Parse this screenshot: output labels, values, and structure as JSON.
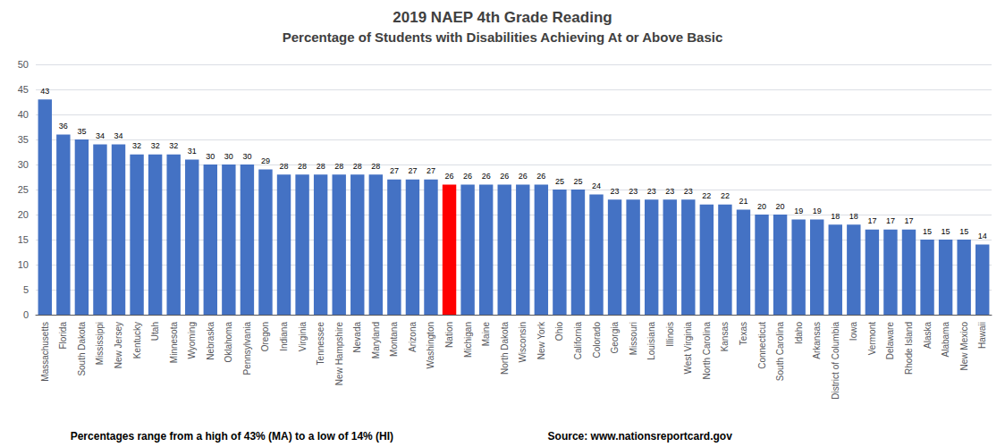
{
  "chart_data": {
    "type": "bar",
    "title": "2019 NAEP 4th Grade Reading",
    "subtitle": "Percentage of Students with Disabilities Achieving At or Above Basic",
    "annotations": [
      "Percentages range from a high of 43% (MA) to a low of 14% (HI)",
      "Source: www.nationsreportcard.gov"
    ],
    "categories": [
      "Massachusetts",
      "Florida",
      "South Dakota",
      "Mississippi",
      "New Jersey",
      "Kentucky",
      "Utah",
      "Minnesota",
      "Wyoming",
      "Nebraska",
      "Oklahoma",
      "Pennsylvania",
      "Oregon",
      "Indiana",
      "Virginia",
      "Tennessee",
      "New Hampshire",
      "Nevada",
      "Maryland",
      "Montana",
      "Arizona",
      "Washington",
      "Nation",
      "Michigan",
      "Maine",
      "North Dakota",
      "Wisconsin",
      "New York",
      "Ohio",
      "California",
      "Colorado",
      "Georgia",
      "Missouri",
      "Louisiana",
      "Illinois",
      "West Virginia",
      "North Carolina",
      "Kansas",
      "Texas",
      "Connecticut",
      "South Carolina",
      "Idaho",
      "Arkansas",
      "District of Columbia",
      "Iowa",
      "Vermont",
      "Delaware",
      "Rhode Island",
      "Alaska",
      "Alabama",
      "New Mexico",
      "Hawaii"
    ],
    "values": [
      43,
      36,
      35,
      34,
      34,
      32,
      32,
      32,
      31,
      30,
      30,
      30,
      29,
      28,
      28,
      28,
      28,
      28,
      28,
      27,
      27,
      27,
      26,
      26,
      26,
      26,
      26,
      26,
      25,
      25,
      24,
      23,
      23,
      23,
      23,
      23,
      22,
      22,
      21,
      20,
      20,
      19,
      19,
      18,
      18,
      17,
      17,
      17,
      15,
      15,
      15,
      14
    ],
    "colors": [
      "#4472C4",
      "#4472C4",
      "#4472C4",
      "#4472C4",
      "#4472C4",
      "#4472C4",
      "#4472C4",
      "#4472C4",
      "#4472C4",
      "#4472C4",
      "#4472C4",
      "#4472C4",
      "#4472C4",
      "#4472C4",
      "#4472C4",
      "#4472C4",
      "#4472C4",
      "#4472C4",
      "#4472C4",
      "#4472C4",
      "#4472C4",
      "#4472C4",
      "#FF0000",
      "#4472C4",
      "#4472C4",
      "#4472C4",
      "#4472C4",
      "#4472C4",
      "#4472C4",
      "#4472C4",
      "#4472C4",
      "#4472C4",
      "#4472C4",
      "#4472C4",
      "#4472C4",
      "#4472C4",
      "#4472C4",
      "#4472C4",
      "#4472C4",
      "#4472C4",
      "#4472C4",
      "#4472C4",
      "#4472C4",
      "#4472C4",
      "#4472C4",
      "#4472C4",
      "#4472C4",
      "#4472C4",
      "#4472C4",
      "#4472C4",
      "#4472C4",
      "#4472C4"
    ],
    "ylim": [
      0,
      50
    ],
    "yticks": [
      0,
      5,
      10,
      15,
      20,
      25,
      30,
      35,
      40,
      45,
      50
    ],
    "grid": true,
    "data_labels": true
  }
}
